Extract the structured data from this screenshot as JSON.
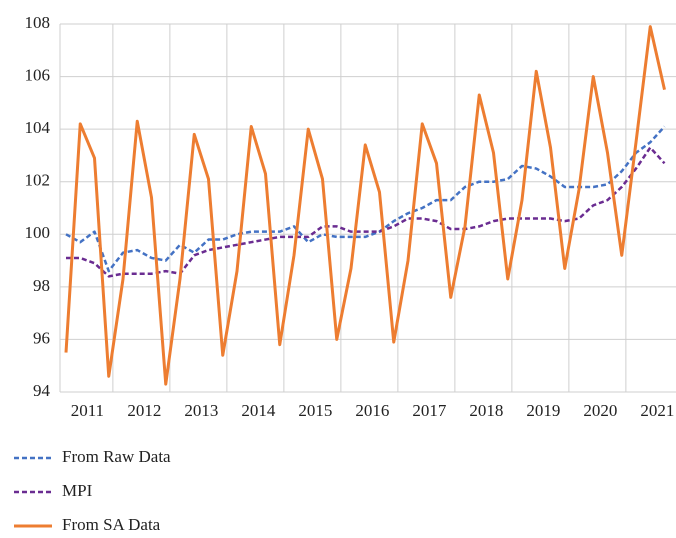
{
  "chart_data": {
    "type": "line",
    "categories": [
      null,
      "2011",
      null,
      null,
      null,
      "2012",
      null,
      null,
      null,
      "2013",
      null,
      null,
      null,
      "2014",
      null,
      null,
      null,
      "2015",
      null,
      null,
      null,
      "2016",
      null,
      null,
      null,
      "2017",
      null,
      null,
      null,
      "2018",
      null,
      null,
      null,
      "2019",
      null,
      null,
      null,
      "2020",
      null,
      null,
      null,
      "2021",
      null
    ],
    "ylim": [
      94,
      108
    ],
    "yticks": [
      94,
      96,
      98,
      100,
      102,
      104,
      106,
      108
    ],
    "grid": true,
    "series": [
      {
        "name": "From Raw Data",
        "color": "#4472c4",
        "dash": true,
        "values": [
          100.0,
          99.7,
          100.1,
          98.6,
          99.3,
          99.4,
          99.1,
          99.0,
          99.6,
          99.3,
          99.8,
          99.8,
          100.0,
          100.1,
          100.1,
          100.1,
          100.3,
          99.7,
          100.0,
          99.9,
          99.9,
          99.9,
          100.1,
          100.5,
          100.8,
          101.0,
          101.3,
          101.3,
          101.8,
          102.0,
          102.0,
          102.1,
          102.6,
          102.5,
          102.2,
          101.8,
          101.8,
          101.8,
          101.9,
          102.4,
          103.1,
          103.5,
          104.1
        ]
      },
      {
        "name": "MPI",
        "color": "#6a2c91",
        "dash": true,
        "values": [
          99.1,
          99.1,
          98.9,
          98.4,
          98.5,
          98.5,
          98.5,
          98.6,
          98.5,
          99.2,
          99.4,
          99.5,
          99.6,
          99.7,
          99.8,
          99.9,
          99.9,
          99.9,
          100.3,
          100.3,
          100.1,
          100.1,
          100.1,
          100.3,
          100.6,
          100.6,
          100.5,
          100.2,
          100.2,
          100.3,
          100.5,
          100.6,
          100.6,
          100.6,
          100.6,
          100.5,
          100.6,
          101.1,
          101.3,
          101.8,
          102.5,
          103.3,
          102.7
        ]
      },
      {
        "name": "From SA Data",
        "color": "#ed7d31",
        "dash": false,
        "values": [
          95.5,
          104.2,
          102.9,
          94.6,
          98.3,
          104.3,
          101.4,
          94.3,
          98.3,
          103.8,
          102.1,
          95.4,
          98.6,
          104.1,
          102.3,
          95.8,
          99.2,
          104.0,
          102.1,
          96.0,
          98.7,
          103.4,
          101.6,
          95.9,
          99.0,
          104.2,
          102.7,
          97.6,
          100.3,
          105.3,
          103.1,
          98.3,
          101.3,
          106.2,
          103.3,
          98.7,
          101.7,
          106.0,
          103.1,
          99.2,
          103.5,
          107.9,
          105.5
        ]
      }
    ]
  }
}
